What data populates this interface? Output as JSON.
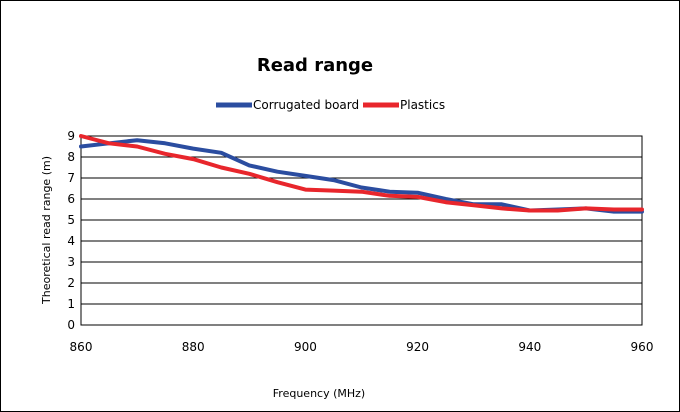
{
  "chart_data": {
    "type": "line",
    "title": "Read range",
    "xlabel": "Frequency (MHz)",
    "ylabel": "Theoretical read range (m)",
    "xlim": [
      860,
      960
    ],
    "ylim": [
      0,
      9
    ],
    "x_ticks": [
      860,
      880,
      900,
      920,
      940,
      960
    ],
    "y_ticks": [
      0,
      1,
      2,
      3,
      4,
      5,
      6,
      7,
      8,
      9
    ],
    "grid": "horizontal",
    "legend_position": "top",
    "series": [
      {
        "name": "Corrugated board",
        "color": "#2B4DA0",
        "x": [
          860,
          865,
          870,
          875,
          880,
          885,
          890,
          895,
          900,
          905,
          910,
          915,
          920,
          925,
          930,
          935,
          940,
          945,
          950,
          955,
          960
        ],
        "y": [
          8.5,
          8.65,
          8.8,
          8.65,
          8.4,
          8.2,
          7.6,
          7.3,
          7.1,
          6.9,
          6.55,
          6.35,
          6.3,
          6.0,
          5.75,
          5.75,
          5.45,
          5.5,
          5.55,
          5.4,
          5.4
        ]
      },
      {
        "name": "Plastics",
        "color": "#E8262C",
        "x": [
          860,
          865,
          870,
          875,
          880,
          885,
          890,
          895,
          900,
          905,
          910,
          915,
          920,
          925,
          930,
          935,
          940,
          945,
          950,
          955,
          960
        ],
        "y": [
          9.0,
          8.65,
          8.5,
          8.15,
          7.9,
          7.5,
          7.2,
          6.8,
          6.45,
          6.4,
          6.35,
          6.15,
          6.1,
          5.85,
          5.7,
          5.55,
          5.45,
          5.45,
          5.55,
          5.5,
          5.5
        ]
      }
    ]
  }
}
